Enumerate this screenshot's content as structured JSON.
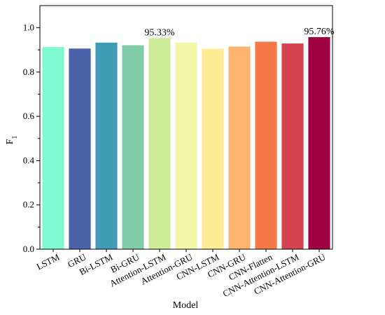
{
  "chart_data": {
    "type": "bar",
    "categories": [
      "LSTM",
      "GRU",
      "Bi-LSTM",
      "Bi-GRU",
      "Attention-LSTM",
      "Attention-GRU",
      "CNN-LSTM",
      "CNN-GRU",
      "CNN-Flatten",
      "CNN-Attention-LSTM",
      "CNN-Attention-GRU"
    ],
    "values": [
      0.913,
      0.906,
      0.933,
      0.921,
      0.9533,
      0.933,
      0.905,
      0.915,
      0.937,
      0.929,
      0.9576
    ],
    "colors": [
      "#7ffad3",
      "#4a63a8",
      "#3f9db5",
      "#80cca6",
      "#cdeb99",
      "#f2f7aa",
      "#feeb95",
      "#fdb46c",
      "#f67a47",
      "#d54350",
      "#9e0142"
    ],
    "data_labels": [
      "",
      "",
      "",
      "",
      "95.33%",
      "",
      "",
      "",
      "",
      "",
      "95.76%"
    ],
    "xlabel": "Model",
    "ylabel": "F",
    "ylabel_subscript": "1",
    "ylim": [
      0,
      1.1
    ],
    "yticks": [
      0.0,
      0.2,
      0.4,
      0.6,
      0.8,
      1.0
    ],
    "ytick_labels": [
      "0.0",
      "0.2",
      "0.4",
      "0.6",
      "0.8",
      "1.0"
    ],
    "grid": false,
    "legend": "none"
  }
}
